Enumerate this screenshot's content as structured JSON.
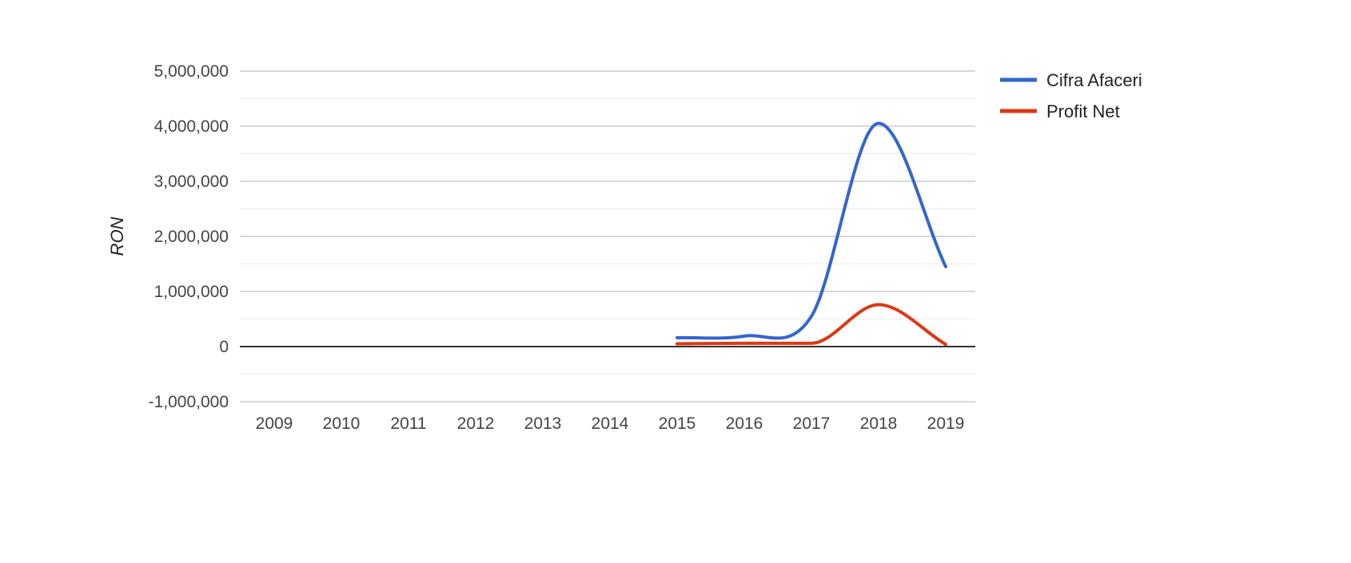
{
  "chart_data": {
    "type": "line",
    "x": [
      "2009",
      "2010",
      "2011",
      "2012",
      "2013",
      "2014",
      "2015",
      "2016",
      "2017",
      "2018",
      "2019"
    ],
    "ylabel": "RON",
    "xlabel": "",
    "ylim": [
      -1000000,
      5000000
    ],
    "yticks": [
      -1000000,
      0,
      1000000,
      2000000,
      3000000,
      4000000,
      5000000
    ],
    "ytick_labels": [
      "-1,000,000",
      "0",
      "1,000,000",
      "2,000,000",
      "3,000,000",
      "4,000,000",
      "5,000,000"
    ],
    "grid": true,
    "minor_grid": true,
    "legend_position": "right",
    "curve": "smooth",
    "series": [
      {
        "name": "Cifra Afaceri",
        "color": "#3366cc",
        "values": [
          null,
          null,
          null,
          null,
          null,
          null,
          160000,
          190000,
          550000,
          4050000,
          1450000
        ]
      },
      {
        "name": "Profit Net",
        "color": "#dc3912",
        "values": [
          null,
          null,
          null,
          null,
          null,
          null,
          50000,
          60000,
          60000,
          760000,
          40000
        ]
      }
    ]
  }
}
